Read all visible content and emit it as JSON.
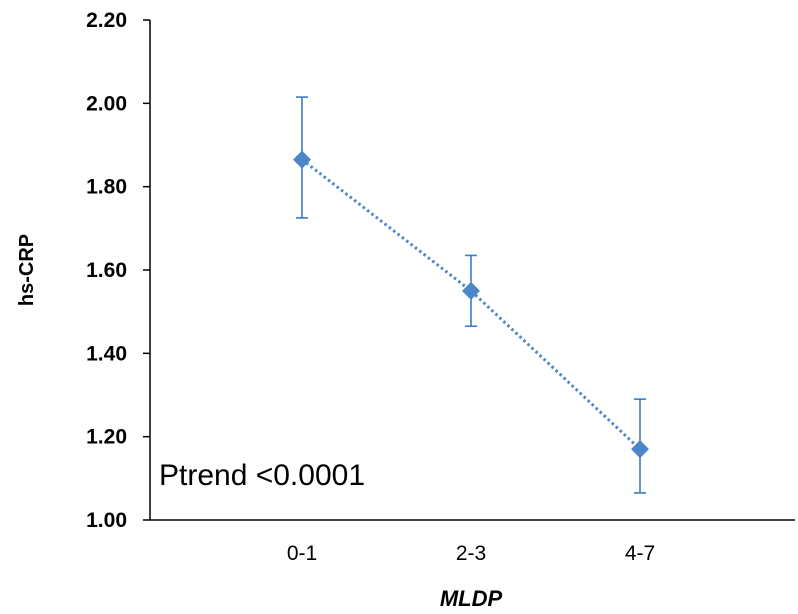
{
  "chart_data": {
    "type": "line",
    "categories": [
      "0-1",
      "2-3",
      "4-7"
    ],
    "series": [
      {
        "values": [
          1.865,
          1.55,
          1.17
        ],
        "error_upper": [
          2.015,
          1.635,
          1.29
        ],
        "error_lower": [
          1.725,
          1.465,
          1.065
        ],
        "color": "#4a86c8",
        "marker": "diamond",
        "line_style": "dotted"
      }
    ],
    "ylim": [
      1.0,
      2.2
    ],
    "yticks": [
      "1.00",
      "1.20",
      "1.40",
      "1.60",
      "1.80",
      "2.00",
      "2.20"
    ],
    "xlabel": "MLDP",
    "ylabel": "hs-CRP",
    "annotation": "Ptrend <0.0001",
    "grid": false,
    "legend": "none",
    "errorbar_color": "#3a7dc4"
  }
}
